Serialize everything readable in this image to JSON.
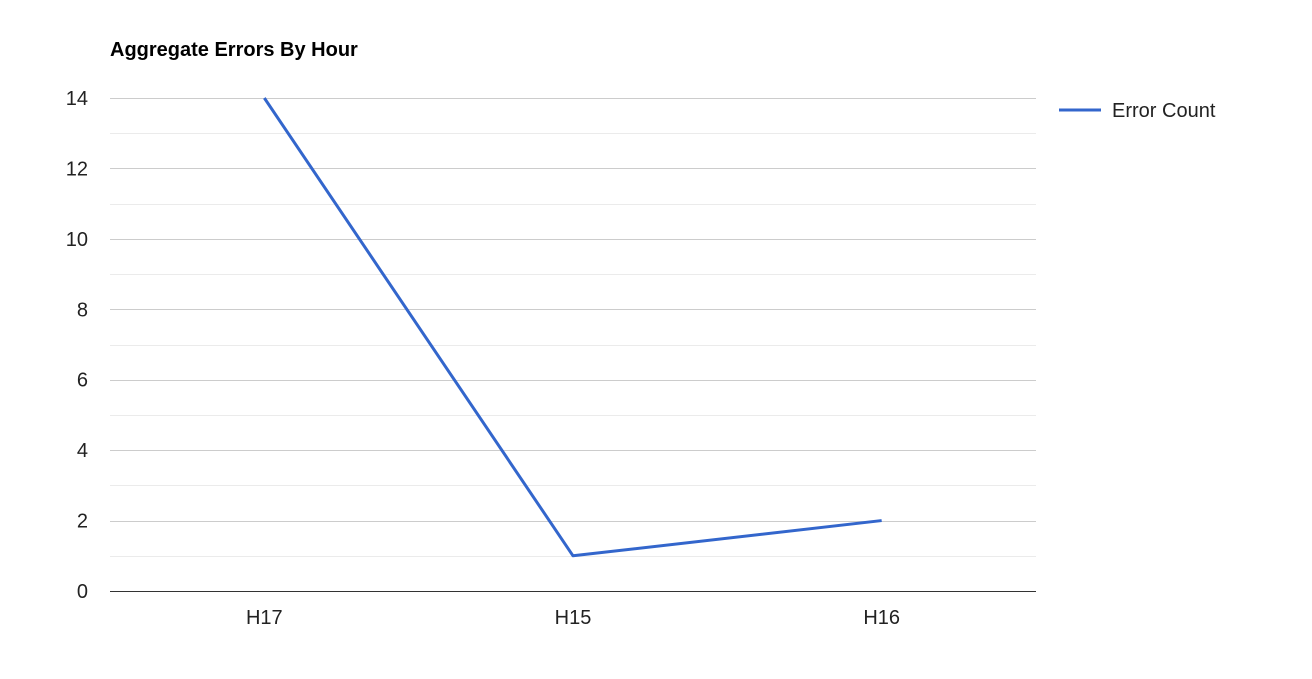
{
  "chart_data": {
    "type": "line",
    "title": "Aggregate Errors By Hour",
    "categories": [
      "H17",
      "H15",
      "H16"
    ],
    "series": [
      {
        "name": "Error Count",
        "values": [
          14,
          1,
          2
        ],
        "color": "#3366cc"
      }
    ],
    "yticks": [
      "0",
      "2",
      "4",
      "6",
      "8",
      "10",
      "12",
      "14"
    ],
    "ylim": [
      0,
      14
    ],
    "minor_grid": true,
    "grid": true,
    "legend": "right",
    "colors": {
      "gridline": "#cccccc",
      "minor_gridline": "#ebebeb",
      "baseline": "#333333",
      "text": "#222222",
      "title": "#000000"
    }
  }
}
